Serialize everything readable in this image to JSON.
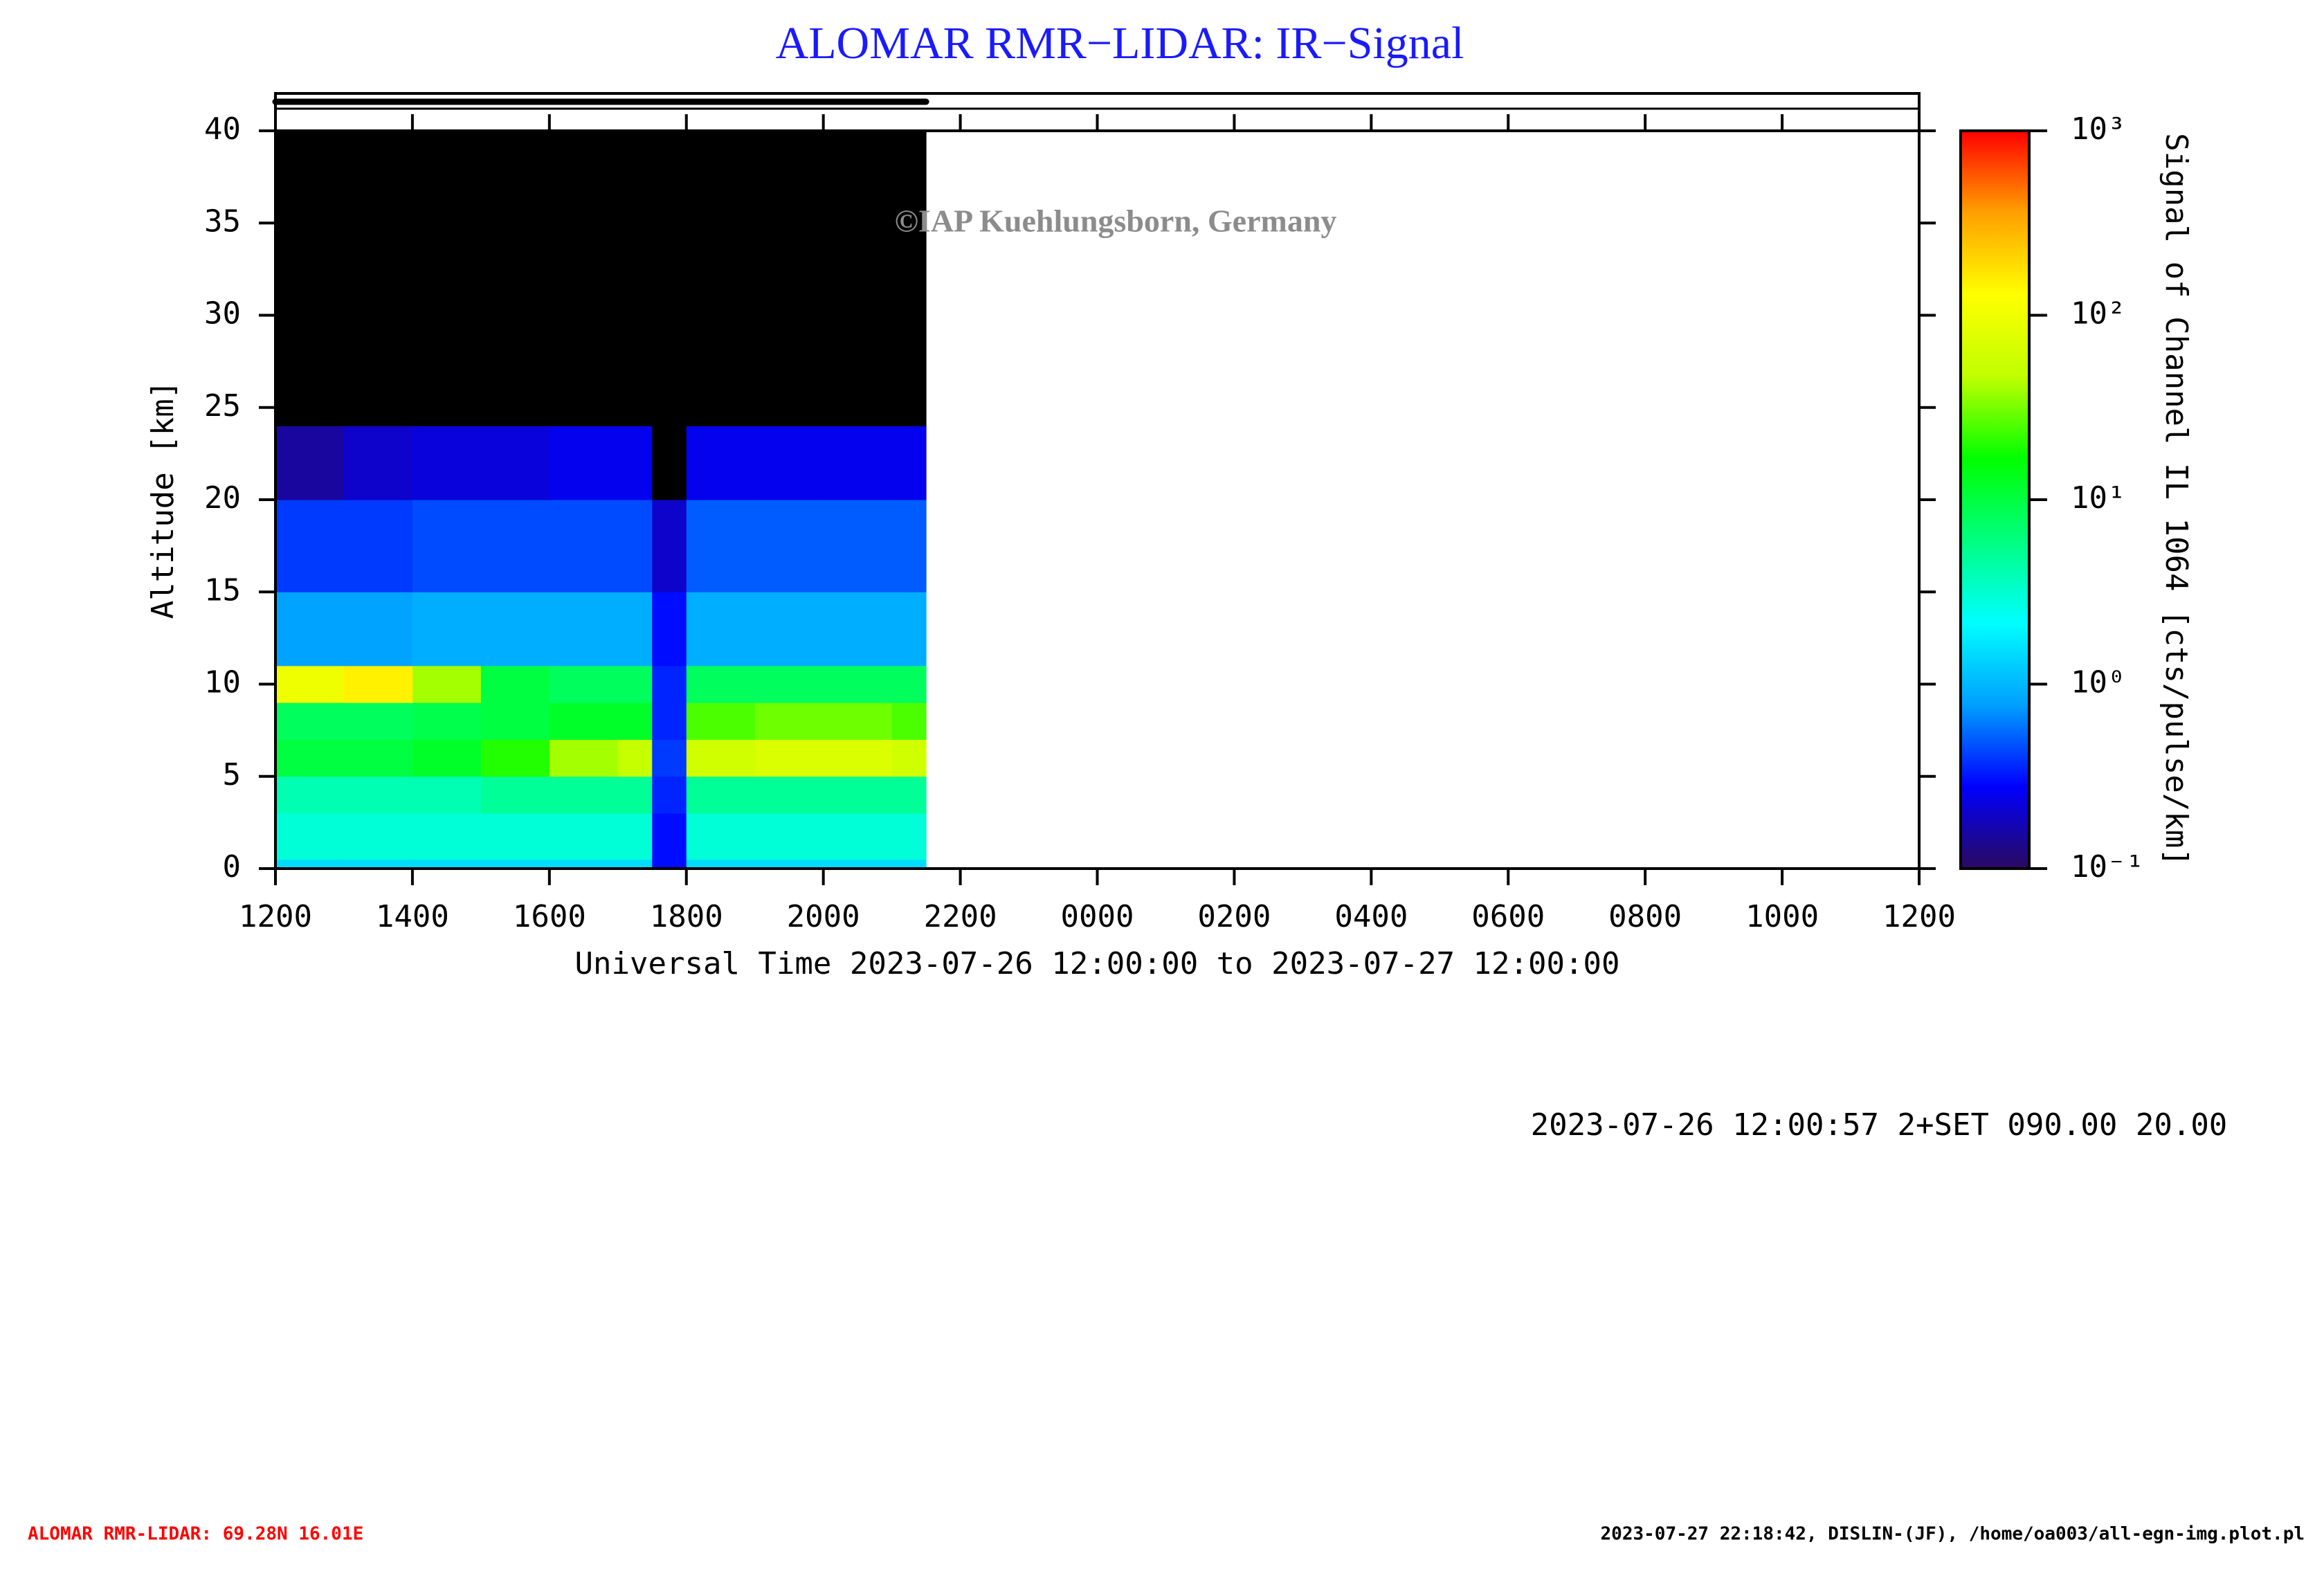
{
  "chart_data": {
    "type": "heatmap",
    "title": "ALOMAR RMR−LIDAR: IR−Signal",
    "watermark": "©IAP Kuehlungsborn, Germany",
    "x_label": "Universal Time 2023-07-26 12:00:00 to 2023-07-27 12:00:00",
    "y_label": "Altitude [km]",
    "colorbar_label": "Signal of Channel IL 1064 [cts/pulse/km]",
    "info": "2023-07-26 12:00:57 2+SET 090.00 20.00",
    "footer_left": "ALOMAR RMR-LIDAR: 69.28N 16.01E",
    "footer_right": "2023-07-27 22:18:42, DISLIN-(JF), /home/oa003/all-egn-img.plot.pl",
    "xlim": [
      12,
      36
    ],
    "xticks": [
      {
        "value": 12,
        "label": "1200"
      },
      {
        "value": 14,
        "label": "1400"
      },
      {
        "value": 16,
        "label": "1600"
      },
      {
        "value": 18,
        "label": "1800"
      },
      {
        "value": 20,
        "label": "2000"
      },
      {
        "value": 22,
        "label": "2200"
      },
      {
        "value": 24,
        "label": "0000"
      },
      {
        "value": 26,
        "label": "0200"
      },
      {
        "value": 28,
        "label": "0400"
      },
      {
        "value": 30,
        "label": "0600"
      },
      {
        "value": 32,
        "label": "0800"
      },
      {
        "value": 34,
        "label": "1000"
      },
      {
        "value": 36,
        "label": "1200"
      }
    ],
    "ylim": [
      0,
      40
    ],
    "yticks": [
      0,
      5,
      10,
      15,
      20,
      25,
      30,
      35,
      40
    ],
    "clim": [
      0.1,
      1000
    ],
    "log_color": true,
    "cticks": [
      {
        "value": 0.1,
        "label": "10⁻¹"
      },
      {
        "value": 1,
        "label": "10⁰"
      },
      {
        "value": 10,
        "label": "10¹"
      },
      {
        "value": 100,
        "label": "10²"
      },
      {
        "value": 1000,
        "label": "10³"
      }
    ],
    "colormap": [
      "#2a0a5e",
      "#0000ff",
      "#00a0ff",
      "#00ffff",
      "#00ff80",
      "#00ff00",
      "#c0ff00",
      "#ffff00",
      "#ffa000",
      "#ff0000"
    ],
    "below_color": "#000000",
    "data_coverage": [
      12,
      21.5
    ],
    "x_edges": [
      12,
      13,
      14,
      15,
      16,
      17,
      17.5,
      18,
      19,
      20,
      21,
      21.5
    ],
    "y_edges": [
      0,
      0.5,
      3,
      5,
      7,
      9,
      11,
      15,
      20,
      24,
      40
    ],
    "z": [
      [
        1.5,
        3,
        4,
        10,
        8,
        100,
        0.8,
        0.4,
        0.15,
        0.05
      ],
      [
        1.5,
        3,
        4,
        10,
        8,
        150,
        0.8,
        0.4,
        0.2,
        0.05
      ],
      [
        1.5,
        3,
        4,
        12,
        9,
        40,
        0.9,
        0.45,
        0.22,
        0.05
      ],
      [
        1.5,
        3,
        5,
        20,
        10,
        10,
        0.9,
        0.45,
        0.22,
        0.05
      ],
      [
        1.5,
        3,
        5,
        40,
        12,
        8,
        0.9,
        0.45,
        0.25,
        0.05
      ],
      [
        1.5,
        3,
        5,
        50,
        12,
        8,
        0.9,
        0.45,
        0.25,
        0.05
      ],
      [
        0.3,
        0.3,
        0.35,
        0.4,
        0.35,
        0.35,
        0.3,
        0.2,
        0.08,
        0.05
      ],
      [
        1.5,
        3,
        5,
        60,
        25,
        8,
        0.9,
        0.5,
        0.25,
        0.05
      ],
      [
        1.5,
        3,
        5,
        70,
        30,
        8,
        0.9,
        0.5,
        0.25,
        0.05
      ],
      [
        1.5,
        3,
        5,
        70,
        30,
        8,
        0.9,
        0.5,
        0.25,
        0.05
      ],
      [
        1.5,
        3,
        5,
        60,
        25,
        8,
        0.9,
        0.5,
        0.25,
        0.05
      ]
    ]
  }
}
